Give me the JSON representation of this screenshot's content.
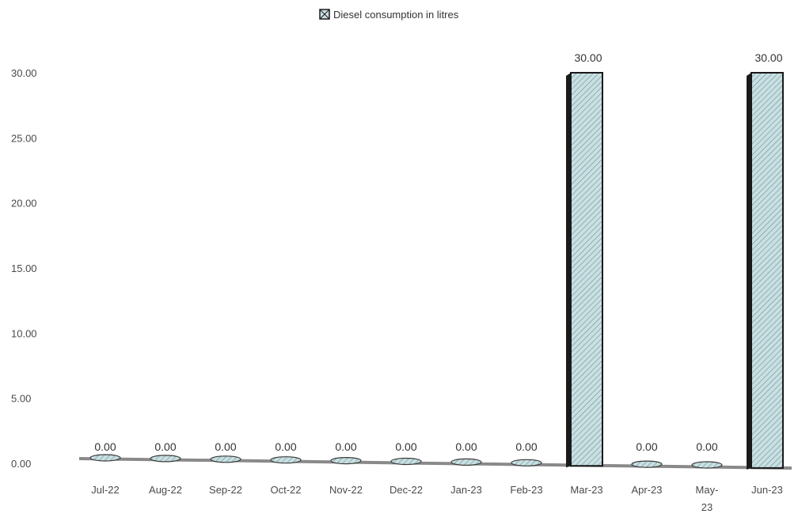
{
  "chart_data": {
    "type": "bar",
    "categories": [
      "Jul-22",
      "Aug-22",
      "Sep-22",
      "Oct-22",
      "Nov-22",
      "Dec-22",
      "Jan-23",
      "Feb-23",
      "Mar-23",
      "Apr-23",
      "May-23",
      "Jun-23"
    ],
    "series": [
      {
        "name": "Diesel consumption in litres",
        "values": [
          0,
          0,
          0,
          0,
          0,
          0,
          0,
          0,
          30,
          0,
          0,
          30
        ]
      }
    ],
    "data_labels": [
      "0.00",
      "0.00",
      "0.00",
      "0.00",
      "0.00",
      "0.00",
      "0.00",
      "0.00",
      "30.00",
      "0.00",
      "0.00",
      "30.00"
    ],
    "y_ticks": [
      "0.00",
      "5.00",
      "10.00",
      "15.00",
      "20.00",
      "25.00",
      "30.00"
    ],
    "ylim": [
      0,
      30
    ],
    "legend_position": "top",
    "grid": false,
    "colors": {
      "bar_fill": "#c9e0e3",
      "bar_edge": "#1a1a1a",
      "axis": "#8a8a8a"
    }
  }
}
